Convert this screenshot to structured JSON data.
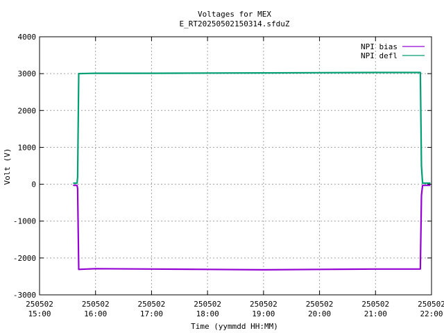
{
  "chart_data": {
    "type": "line",
    "title": "Voltages for MEX",
    "subtitle": "E_RT20250502150314.sfduZ",
    "xlabel": "Time (yymmdd HH:MM)",
    "ylabel": "Volt (V)",
    "xlim": [
      15.0,
      22.0
    ],
    "ylim": [
      -3000,
      4000
    ],
    "grid": true,
    "legend_position": "top-right",
    "x_ticks": [
      {
        "value": 15,
        "date": "250502",
        "time": "15:00"
      },
      {
        "value": 16,
        "date": "250502",
        "time": "16:00"
      },
      {
        "value": 17,
        "date": "250502",
        "time": "17:00"
      },
      {
        "value": 18,
        "date": "250502",
        "time": "18:00"
      },
      {
        "value": 19,
        "date": "250502",
        "time": "19:00"
      },
      {
        "value": 20,
        "date": "250502",
        "time": "20:00"
      },
      {
        "value": 21,
        "date": "250502",
        "time": "21:00"
      },
      {
        "value": 22,
        "date": "250502",
        "time": "22:00"
      }
    ],
    "y_ticks": [
      {
        "value": 4000,
        "label": "4000"
      },
      {
        "value": 3000,
        "label": "3000"
      },
      {
        "value": 2000,
        "label": "2000"
      },
      {
        "value": 1000,
        "label": "1000"
      },
      {
        "value": 0,
        "label": "0"
      },
      {
        "value": -1000,
        "label": "-1000"
      },
      {
        "value": -2000,
        "label": "-2000"
      },
      {
        "value": -3000,
        "label": "-3000"
      }
    ],
    "series": [
      {
        "name": "NPI bias",
        "color": "#9400d3",
        "points": [
          [
            15.6,
            -30
          ],
          [
            15.67,
            -30
          ],
          [
            15.68,
            -120
          ],
          [
            15.7,
            -2310
          ],
          [
            16.0,
            -2290
          ],
          [
            17.0,
            -2300
          ],
          [
            18.0,
            -2310
          ],
          [
            19.0,
            -2320
          ],
          [
            20.0,
            -2310
          ],
          [
            21.0,
            -2300
          ],
          [
            21.8,
            -2300
          ],
          [
            21.82,
            -300
          ],
          [
            21.84,
            -30
          ],
          [
            21.98,
            -30
          ]
        ]
      },
      {
        "name": "NPI defl",
        "color": "#009e73",
        "points": [
          [
            15.6,
            30
          ],
          [
            15.67,
            30
          ],
          [
            15.68,
            200
          ],
          [
            15.7,
            3000
          ],
          [
            16.0,
            3010
          ],
          [
            17.0,
            3010
          ],
          [
            18.0,
            3015
          ],
          [
            19.0,
            3020
          ],
          [
            20.0,
            3025
          ],
          [
            21.0,
            3030
          ],
          [
            21.8,
            3030
          ],
          [
            21.82,
            500
          ],
          [
            21.84,
            30
          ],
          [
            21.98,
            30
          ]
        ]
      }
    ]
  }
}
